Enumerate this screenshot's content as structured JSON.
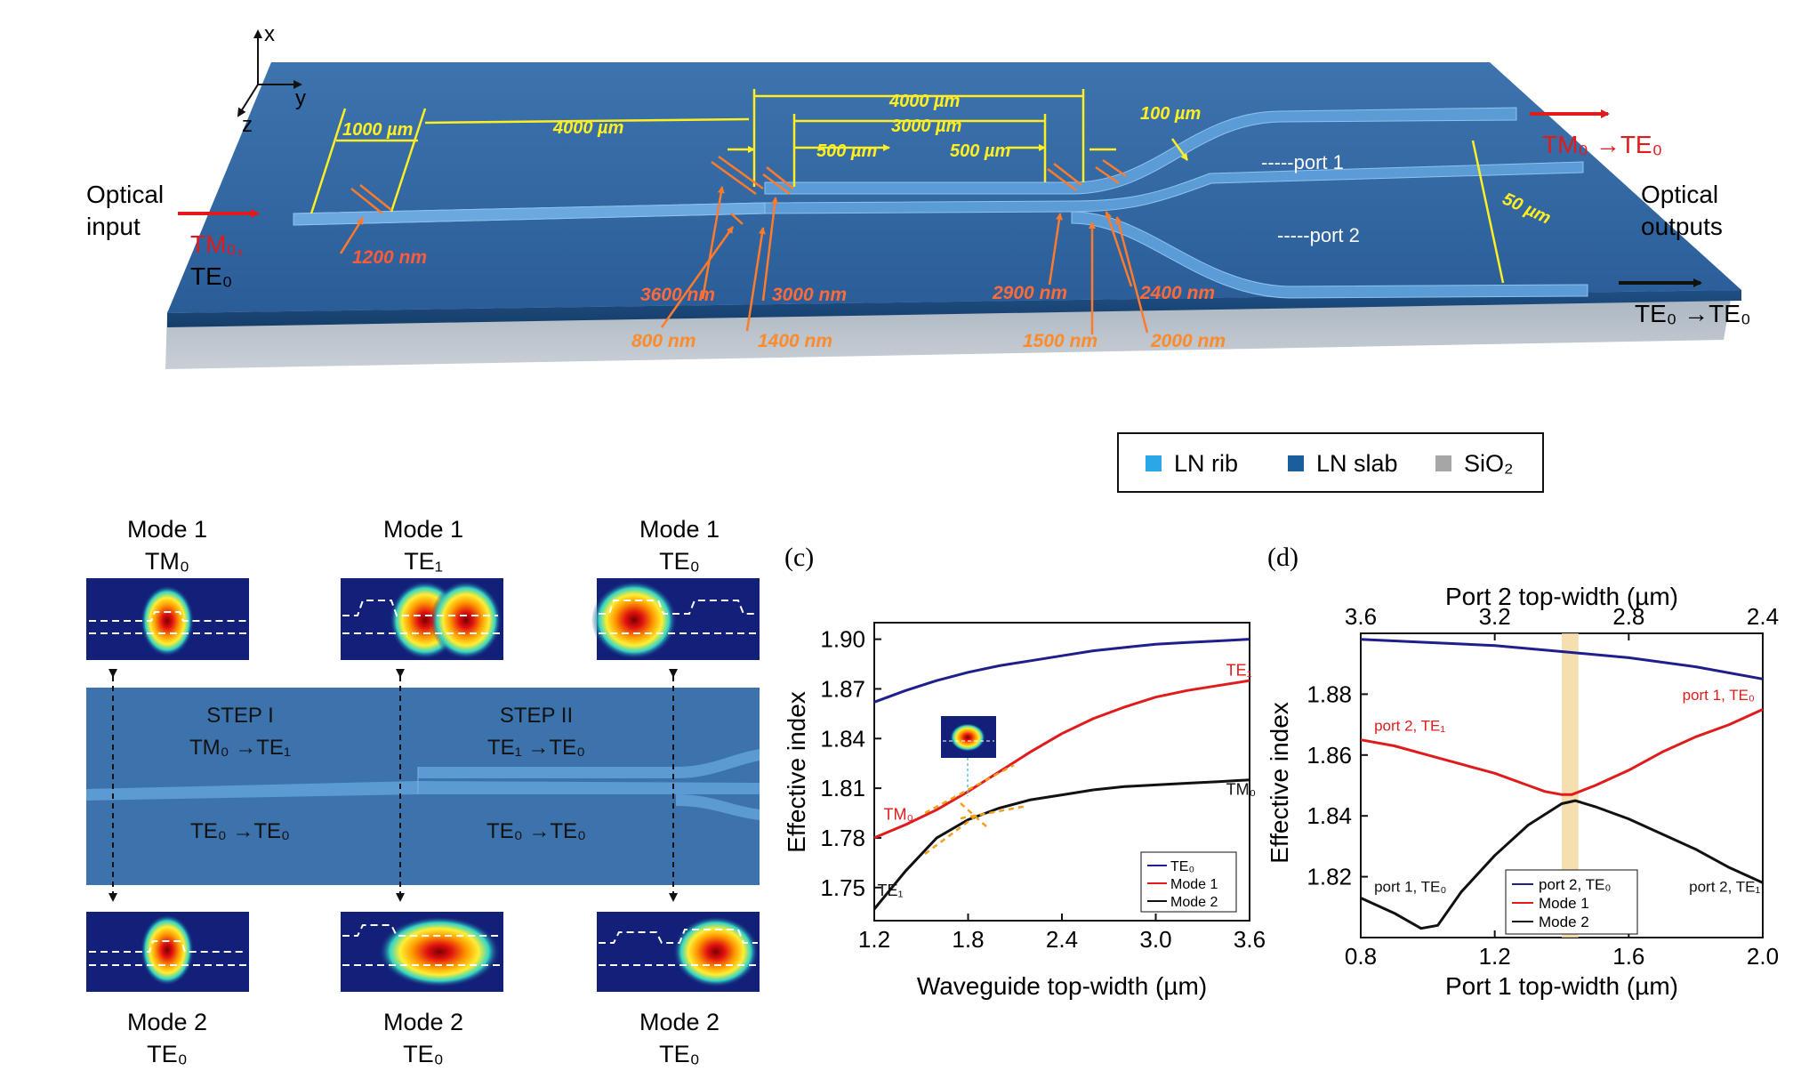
{
  "axes_triad": {
    "x": "x",
    "y": "y",
    "z": "z"
  },
  "device": {
    "input_label_1": "Optical",
    "input_label_2": "input",
    "input_mode_1": "TM₀,",
    "input_mode_2": "TE₀",
    "output_label_1": "Optical",
    "output_label_2": "outputs",
    "output_top": "TM₀ →TE₀",
    "output_bottom": "TE₀ →TE₀",
    "port1": "-----port 1",
    "port2": "-----port 2",
    "dim_1000": "1000 µm",
    "dim_4000a": "4000 µm",
    "dim_4000b": "4000 µm",
    "dim_3000": "3000 µm",
    "dim_500a": "500 µm",
    "dim_500b": "500 µm",
    "dim_100": "100 µm",
    "dim_50": "50 µm",
    "w_1200": "1200 nm",
    "w_3600": "3600 nm",
    "w_800": "800 nm",
    "w_3000": "3000 nm",
    "w_1400": "1400 nm",
    "w_2900": "2900 nm",
    "w_1500": "1500 nm",
    "w_2400": "2400 nm",
    "w_2000": "2000 nm"
  },
  "legend": {
    "items": [
      {
        "label": "LN rib",
        "color": "#2aa7e6"
      },
      {
        "label": "LN slab",
        "color": "#1a5f9c"
      },
      {
        "label": "SiO₂",
        "color": "#a6a6a6"
      }
    ]
  },
  "modes": {
    "top": [
      {
        "title": "Mode 1",
        "sub": "TM₀"
      },
      {
        "title": "Mode 1",
        "sub": "TE₁"
      },
      {
        "title": "Mode 1",
        "sub": "TE₀"
      }
    ],
    "bottom": [
      {
        "title": "Mode 2",
        "sub": "TE₀"
      },
      {
        "title": "Mode 2",
        "sub": "TE₀"
      },
      {
        "title": "Mode 2",
        "sub": "TE₀"
      }
    ],
    "step1": "STEP I",
    "step1_top": "TM₀ →TE₁",
    "step1_bottom": "TE₀ →TE₀",
    "step2": "STEP II",
    "step2_top": "TE₁ →TE₀",
    "step2_bottom": "TE₀ →TE₀"
  },
  "chart_data": [
    {
      "type": "line",
      "panel_label": "(c)",
      "xlabel": "Waveguide top-width (µm)",
      "ylabel": "Effective index",
      "xlim": [
        1.2,
        3.6
      ],
      "ylim": [
        1.73,
        1.91
      ],
      "xticks": [
        1.2,
        1.8,
        2.4,
        3.0,
        3.6
      ],
      "xtick_labels": [
        "1.2",
        "1.8",
        "2.4",
        "3.0",
        "3.6"
      ],
      "yticks": [
        1.75,
        1.78,
        1.81,
        1.84,
        1.87,
        1.9
      ],
      "ytick_labels": [
        "1.75",
        "1.78",
        "1.81",
        "1.84",
        "1.87",
        "1.90"
      ],
      "series": [
        {
          "name": "TE₀",
          "color": "#1f1f8c",
          "x": [
            1.2,
            1.4,
            1.6,
            1.8,
            2.0,
            2.2,
            2.4,
            2.6,
            2.8,
            3.0,
            3.2,
            3.4,
            3.6
          ],
          "y": [
            1.862,
            1.869,
            1.875,
            1.88,
            1.884,
            1.887,
            1.89,
            1.893,
            1.895,
            1.897,
            1.898,
            1.899,
            1.9
          ]
        },
        {
          "name": "Mode 1",
          "color": "#e01b1b",
          "x": [
            1.2,
            1.4,
            1.6,
            1.8,
            2.0,
            2.2,
            2.4,
            2.6,
            2.8,
            3.0,
            3.2,
            3.4,
            3.6
          ],
          "y": [
            1.78,
            1.788,
            1.797,
            1.808,
            1.82,
            1.832,
            1.843,
            1.852,
            1.859,
            1.865,
            1.869,
            1.872,
            1.875
          ]
        },
        {
          "name": "Mode 2",
          "color": "#111111",
          "x": [
            1.2,
            1.4,
            1.6,
            1.8,
            2.0,
            2.2,
            2.4,
            2.6,
            2.8,
            3.0,
            3.2,
            3.4,
            3.6
          ],
          "y": [
            1.737,
            1.76,
            1.78,
            1.791,
            1.798,
            1.803,
            1.806,
            1.809,
            1.811,
            1.812,
            1.813,
            1.814,
            1.815
          ]
        }
      ],
      "annotations": [
        {
          "text": "TE₁",
          "x": 3.45,
          "y": 1.878,
          "color": "#e01b1b"
        },
        {
          "text": "TM₀",
          "x": 1.26,
          "y": 1.791,
          "color": "#e01b1b"
        },
        {
          "text": "TM₀",
          "x": 3.45,
          "y": 1.806,
          "color": "#111111"
        },
        {
          "text": "TE₁",
          "x": 1.22,
          "y": 1.745,
          "color": "#111111"
        }
      ],
      "legend_position": "bottom-right"
    },
    {
      "type": "line",
      "panel_label": "(d)",
      "xlabel": "Port 1 top-width (µm)",
      "x2label": "Port 2 top-width (µm)",
      "ylabel": "Effective index",
      "xlim": [
        0.8,
        2.0
      ],
      "ylim": [
        1.8,
        1.9
      ],
      "xticks": [
        0.8,
        1.2,
        1.6,
        2.0
      ],
      "xtick_labels": [
        "0.8",
        "1.2",
        "1.6",
        "2.0"
      ],
      "x2ticks": [
        0.8,
        1.2,
        1.6,
        2.0
      ],
      "x2tick_labels": [
        "3.6",
        "3.2",
        "2.8",
        "2.4"
      ],
      "yticks": [
        1.82,
        1.84,
        1.86,
        1.88
      ],
      "ytick_labels": [
        "1.82",
        "1.84",
        "1.86",
        "1.88"
      ],
      "highlight_band": [
        1.4,
        1.45
      ],
      "series": [
        {
          "name": "port 2, TE₀",
          "color": "#1f1f8c",
          "x": [
            0.8,
            1.0,
            1.2,
            1.4,
            1.6,
            1.8,
            2.0
          ],
          "y": [
            1.898,
            1.897,
            1.896,
            1.894,
            1.892,
            1.889,
            1.885
          ]
        },
        {
          "name": "Mode 1",
          "color": "#e01b1b",
          "x": [
            0.8,
            0.9,
            1.0,
            1.1,
            1.2,
            1.3,
            1.35,
            1.4,
            1.43,
            1.5,
            1.6,
            1.7,
            1.8,
            1.9,
            2.0
          ],
          "y": [
            1.865,
            1.863,
            1.86,
            1.857,
            1.854,
            1.85,
            1.848,
            1.847,
            1.847,
            1.85,
            1.855,
            1.861,
            1.866,
            1.87,
            1.875
          ]
        },
        {
          "name": "Mode 2",
          "color": "#111111",
          "x": [
            0.8,
            0.9,
            0.98,
            1.03,
            1.1,
            1.2,
            1.3,
            1.4,
            1.44,
            1.5,
            1.6,
            1.7,
            1.8,
            1.9,
            2.0
          ],
          "y": [
            1.813,
            1.808,
            1.803,
            1.804,
            1.815,
            1.827,
            1.837,
            1.844,
            1.845,
            1.843,
            1.839,
            1.834,
            1.829,
            1.823,
            1.818
          ]
        }
      ],
      "annotations": [
        {
          "text": "port 2, TE₁",
          "x": 0.84,
          "y": 1.868,
          "color": "#e01b1b"
        },
        {
          "text": "port 1, TE₀",
          "x": 1.76,
          "y": 1.878,
          "color": "#e01b1b"
        },
        {
          "text": "port 1, TE₀",
          "x": 0.84,
          "y": 1.815,
          "color": "#111111"
        },
        {
          "text": "port 2, TE₁",
          "x": 1.78,
          "y": 1.815,
          "color": "#111111"
        }
      ],
      "legend_position": "bottom-center"
    }
  ]
}
